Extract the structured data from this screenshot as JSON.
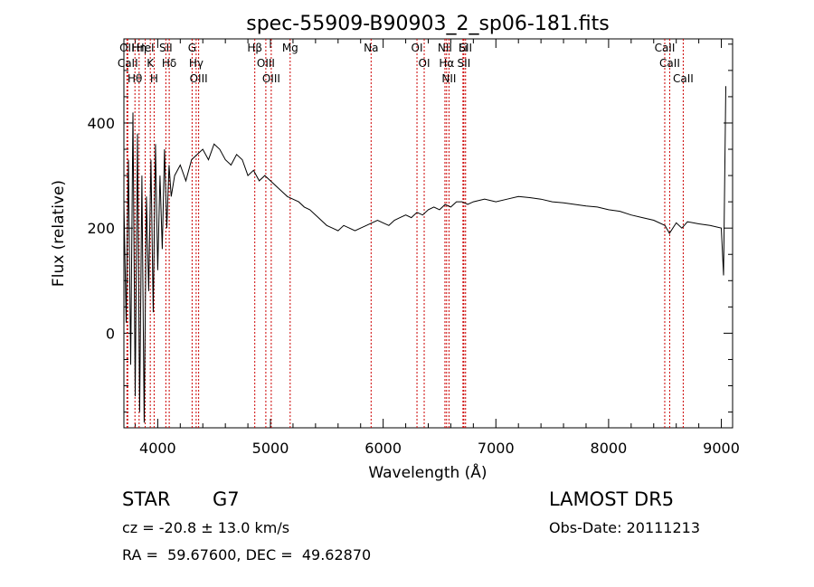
{
  "chart_data": {
    "type": "line",
    "title": "spec-55909-B90903_2_sp06-181.fits",
    "xlabel": "Wavelength (Å)",
    "ylabel": "Flux (relative)",
    "xlim": [
      3700,
      9100
    ],
    "ylim": [
      -180,
      560
    ],
    "x_ticks": [
      4000,
      5000,
      6000,
      7000,
      8000,
      9000
    ],
    "y_ticks": [
      0,
      200,
      400
    ],
    "line_color": "#000000",
    "marker_color": "#cc0000",
    "grid": false,
    "series": [
      {
        "x": [
          3700,
          3720,
          3740,
          3760,
          3780,
          3800,
          3820,
          3840,
          3860,
          3880,
          3900,
          3920,
          3940,
          3960,
          3980,
          4000,
          4020,
          4040,
          4060,
          4080,
          4100,
          4120,
          4150,
          4200,
          4250,
          4300,
          4350,
          4400,
          4450,
          4500,
          4550,
          4600,
          4650,
          4700,
          4750,
          4800,
          4850,
          4900,
          4950,
          5000,
          5050,
          5100,
          5150,
          5200,
          5250,
          5300,
          5350,
          5400,
          5450,
          5500,
          5550,
          5600,
          5650,
          5700,
          5750,
          5800,
          5850,
          5900,
          5950,
          6000,
          6050,
          6100,
          6150,
          6200,
          6250,
          6300,
          6350,
          6400,
          6450,
          6500,
          6550,
          6600,
          6650,
          6700,
          6750,
          6800,
          6900,
          7000,
          7100,
          7200,
          7300,
          7400,
          7500,
          7600,
          7700,
          7800,
          7900,
          8000,
          8100,
          8200,
          8300,
          8400,
          8500,
          8540,
          8600,
          8650,
          8700,
          8800,
          8900,
          9000,
          9020,
          9040
        ],
        "values": [
          250,
          20,
          330,
          -60,
          420,
          -120,
          380,
          -150,
          300,
          -170,
          260,
          80,
          330,
          40,
          360,
          120,
          300,
          160,
          350,
          200,
          320,
          260,
          300,
          320,
          290,
          330,
          340,
          350,
          330,
          360,
          350,
          330,
          320,
          340,
          330,
          300,
          310,
          290,
          300,
          290,
          280,
          270,
          260,
          255,
          250,
          240,
          235,
          225,
          215,
          205,
          200,
          195,
          205,
          200,
          195,
          200,
          205,
          210,
          215,
          210,
          205,
          215,
          220,
          225,
          220,
          230,
          225,
          235,
          240,
          235,
          245,
          240,
          250,
          250,
          245,
          250,
          255,
          250,
          255,
          260,
          258,
          255,
          250,
          248,
          245,
          242,
          240,
          235,
          232,
          225,
          220,
          215,
          205,
          190,
          210,
          200,
          212,
          208,
          205,
          200,
          110,
          470
        ]
      }
    ],
    "lines": [
      {
        "label": "Hθ",
        "x": 3798
      },
      {
        "label": "OII",
        "x": 3727
      },
      {
        "label": "CaII",
        "x": 3734
      },
      {
        "label": "Hη",
        "x": 3835
      },
      {
        "label": "K",
        "x": 3934
      },
      {
        "label": "HeI",
        "x": 3889
      },
      {
        "label": "H",
        "x": 3968
      },
      {
        "label": "Hδ",
        "x": 4102
      },
      {
        "label": "SII",
        "x": 4072
      },
      {
        "label": "OIII",
        "x": 4363
      },
      {
        "label": "Hγ",
        "x": 4341
      },
      {
        "label": "G",
        "x": 4305
      },
      {
        "label": "OIII",
        "x": 5007
      },
      {
        "label": "OIII",
        "x": 4959
      },
      {
        "label": "Hβ",
        "x": 4861
      },
      {
        "label": "Mg",
        "x": 5175
      },
      {
        "label": "Na",
        "x": 5893
      },
      {
        "label": "OI",
        "x": 6300
      },
      {
        "label": "OI",
        "x": 6364
      },
      {
        "label": "Hα",
        "x": 6563
      },
      {
        "label": "NII",
        "x": 6548
      },
      {
        "label": "NII",
        "x": 6584
      },
      {
        "label": "SII",
        "x": 6716
      },
      {
        "label": "Li",
        "x": 6708
      },
      {
        "label": "SII",
        "x": 6731
      },
      {
        "label": "CaII",
        "x": 8542
      },
      {
        "label": "CaII",
        "x": 8498
      },
      {
        "label": "CaII",
        "x": 8662
      }
    ]
  },
  "info": {
    "object_class": "STAR",
    "subclass": "G7",
    "survey": "LAMOST DR5",
    "redshift": "cz = -20.8 ± 13.0 km/s",
    "obs_date": "Obs-Date: 20111213",
    "coords": "RA =  59.67600, DEC =  49.62870"
  }
}
